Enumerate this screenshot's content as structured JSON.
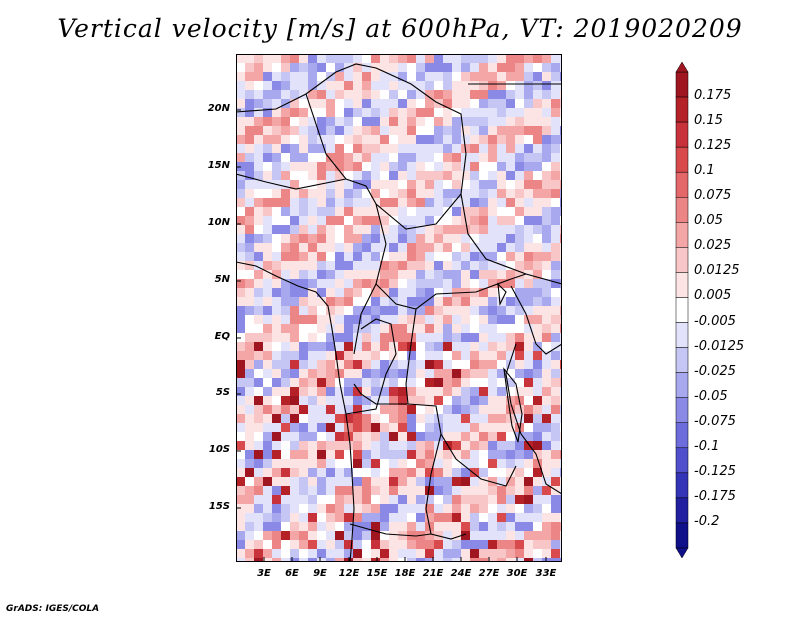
{
  "title": "Vertical velocity [m/s] at 600hPa, VT: 2019020209",
  "footer": "GrADS: IGES/COLA",
  "map": {
    "variable": "Vertical velocity",
    "units": "m/s",
    "level": "600hPa",
    "valid_time": "2019020209",
    "lat_labels": [
      "20N",
      "15N",
      "10N",
      "5N",
      "EQ",
      "5S",
      "10S",
      "15S"
    ],
    "lon_labels": [
      "3E",
      "6E",
      "9E",
      "12E",
      "15E",
      "18E",
      "21E",
      "24E",
      "27E",
      "30E",
      "33E"
    ]
  },
  "colorbar": {
    "labels": [
      "0.175",
      "0.15",
      "0.125",
      "0.1",
      "0.075",
      "0.05",
      "0.025",
      "0.0125",
      "0.005",
      "-0.005",
      "-0.0125",
      "-0.025",
      "-0.05",
      "-0.075",
      "-0.1",
      "-0.125",
      "-0.175",
      "-0.2"
    ],
    "colors": [
      "#a01620",
      "#b42228",
      "#c8323a",
      "#d84a4c",
      "#e4676a",
      "#ec8686",
      "#f4a6a6",
      "#f8c6c6",
      "#fce4e4",
      "#ffffff",
      "#e2e2fa",
      "#c6c6f4",
      "#a8a8ee",
      "#8a8ae6",
      "#6c6cdc",
      "#5050cc",
      "#3434b8",
      "#2020a0",
      "#10108a"
    ]
  }
}
